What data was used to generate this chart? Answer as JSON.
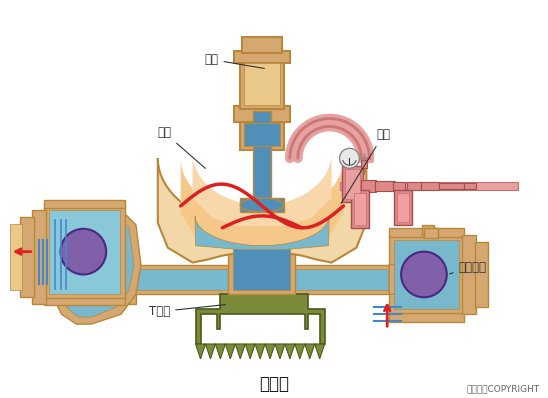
{
  "bg_color": "#ffffff",
  "title": "隔膜泵",
  "copyright": "东方仿真COPYRIGHT",
  "labels": {
    "gas_cylinder": "气缸",
    "pump_body": "泵体",
    "diaphragm": "隔膜",
    "check_valve": "单向球阀",
    "t_pipe": "T型管"
  },
  "colors": {
    "tan_body": "#D4A870",
    "tan_light": "#EAC88A",
    "tan_fill": "#F2D8A8",
    "tan_edge": "#B8873A",
    "blue_fluid": "#88C8D8",
    "blue_dark": "#5090B8",
    "blue_mid": "#78B8CC",
    "purple_ball": "#8060A8",
    "pink_tube": "#E8A0A0",
    "pink_body": "#E08888",
    "red_line": "#DD2020",
    "green_base": "#7A8C3A",
    "green_edge": "#4A5C1A",
    "blue_lines": "#4488CC",
    "gray_line": "#888888"
  }
}
